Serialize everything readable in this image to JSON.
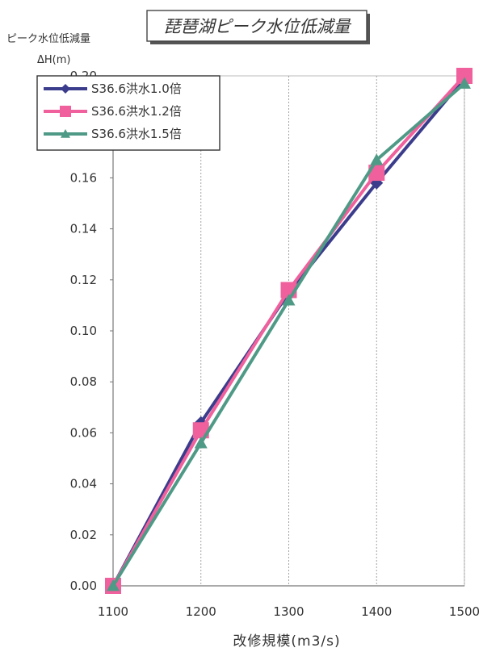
{
  "chart_data": {
    "type": "line",
    "title": "琵琶湖ピーク水位低減量",
    "ylabel_line1": "ピーク水位低減量",
    "ylabel_line2": "ΔH(m)",
    "xlabel": "改修規模(m3/s)",
    "x": [
      1100,
      1200,
      1300,
      1400,
      1500
    ],
    "xlim": [
      1100,
      1500
    ],
    "xticks": [
      "1100",
      "1200",
      "1300",
      "1400",
      "1500"
    ],
    "ylim": [
      0,
      0.2
    ],
    "yticks": [
      "0.00",
      "0.02",
      "0.04",
      "0.06",
      "0.08",
      "0.10",
      "0.12",
      "0.14",
      "0.16",
      "0.18",
      "0.20"
    ],
    "grid": "x-vertical-dotted",
    "legend_position": "top-left",
    "series": [
      {
        "name": "S36.6洪水1.0倍",
        "color": "#3b3d8c",
        "marker": "diamond",
        "values": [
          0.0,
          0.064,
          0.115,
          0.158,
          0.199
        ]
      },
      {
        "name": "S36.6洪水1.2倍",
        "color": "#f0609c",
        "marker": "square",
        "values": [
          0.0,
          0.061,
          0.116,
          0.162,
          0.2
        ]
      },
      {
        "name": "S36.6洪水1.5倍",
        "color": "#4f9a86",
        "marker": "triangle",
        "values": [
          0.0,
          0.056,
          0.112,
          0.167,
          0.197
        ]
      }
    ]
  }
}
